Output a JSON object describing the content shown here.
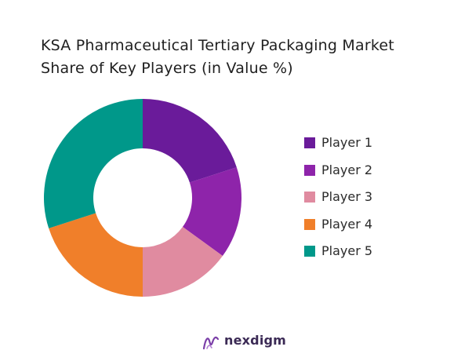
{
  "chart_data": {
    "type": "donut",
    "title_lines": [
      "KSA Pharmaceutical Tertiary Packaging Market",
      "Share of Key Players (in Value %)"
    ],
    "series": [
      {
        "name": "Player 1",
        "value": 20,
        "color": "#6a1b9a"
      },
      {
        "name": "Player 2",
        "value": 15,
        "color": "#8e24aa"
      },
      {
        "name": "Player 3",
        "value": 15,
        "color": "#e08ba0"
      },
      {
        "name": "Player 4",
        "value": 20,
        "color": "#f07f2a"
      },
      {
        "name": "Player 5",
        "value": 30,
        "color": "#00988a"
      }
    ],
    "legend_position": "right"
  },
  "brand": {
    "name": "nexdigm",
    "icon": "nexdigm-logo-icon",
    "color": "#3b2a55"
  }
}
